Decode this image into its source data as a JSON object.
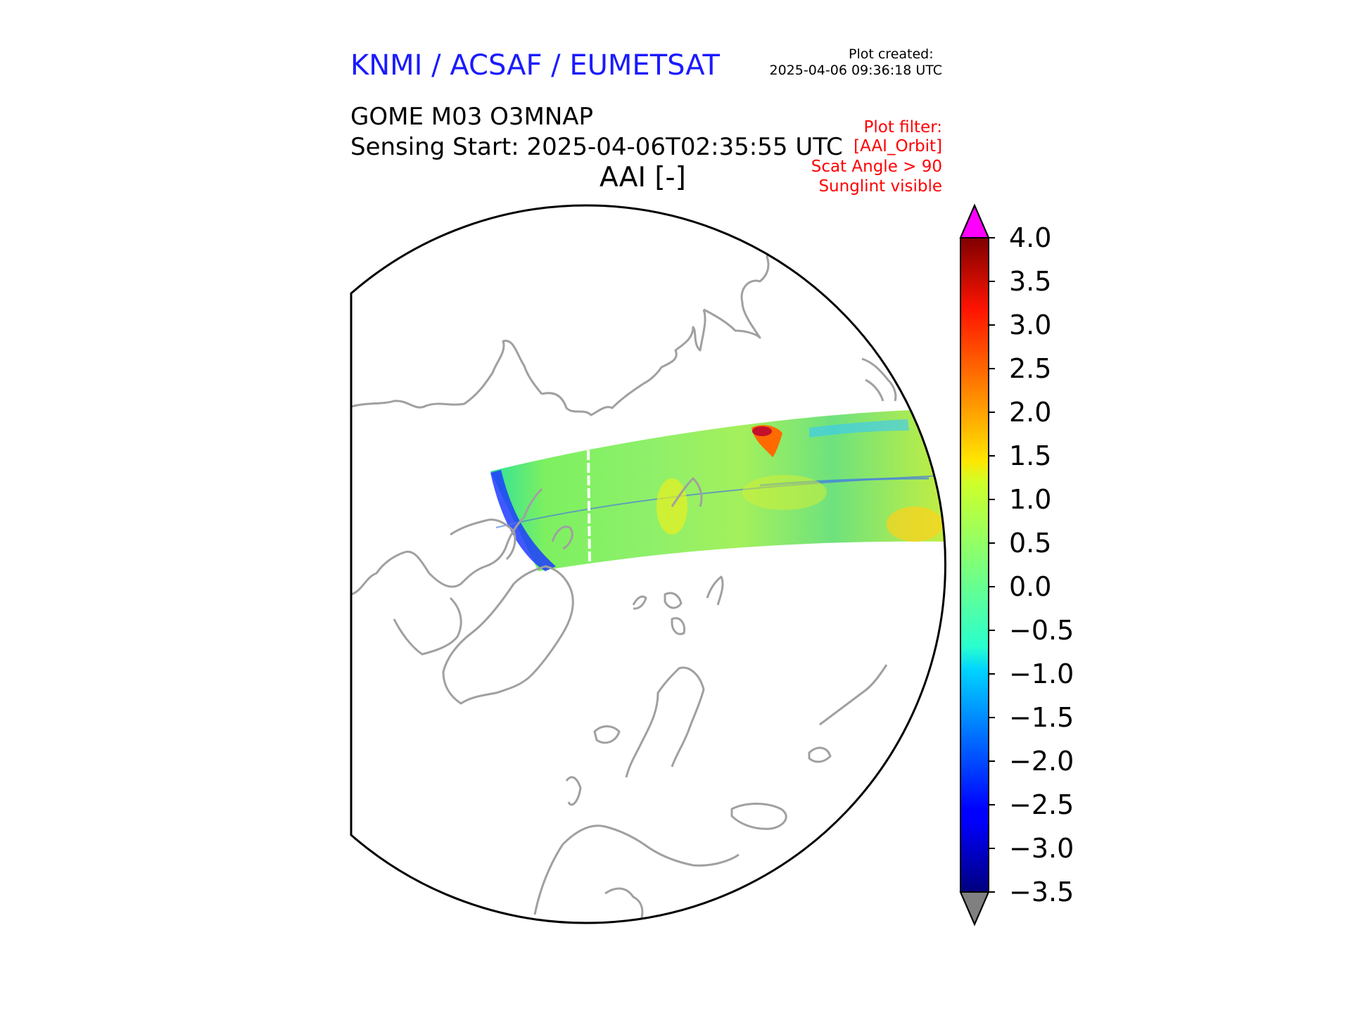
{
  "header": {
    "organization": "KNMI / ACSAF / EUMETSAT",
    "plot_created_label": "Plot created:",
    "plot_created_time": "2025-04-06 09:36:18 UTC",
    "product": "GOME M03 O3MNAP",
    "sensing_start": "Sensing Start: 2025-04-06T02:35:55 UTC",
    "variable": "AAI [-]"
  },
  "plot_filter": [
    "Plot filter:",
    "[AAI_Orbit]",
    "Scat Angle > 90",
    "Sunglint visible"
  ],
  "colorbar": {
    "min": -3.5,
    "max": 4.0,
    "ticks": [
      "4.0",
      "3.5",
      "3.0",
      "2.5",
      "2.0",
      "1.5",
      "1.0",
      "0.5",
      "0.0",
      "−0.5",
      "−1.0",
      "−1.5",
      "−2.0",
      "−2.5",
      "−3.0",
      "−3.5"
    ],
    "over_color": "#ff00ff",
    "under_color": "#808080",
    "colormap": "jet"
  },
  "map": {
    "projection": "north polar stereographic",
    "coastline_color": "#a0a0a0",
    "boundary_color": "#000000"
  }
}
